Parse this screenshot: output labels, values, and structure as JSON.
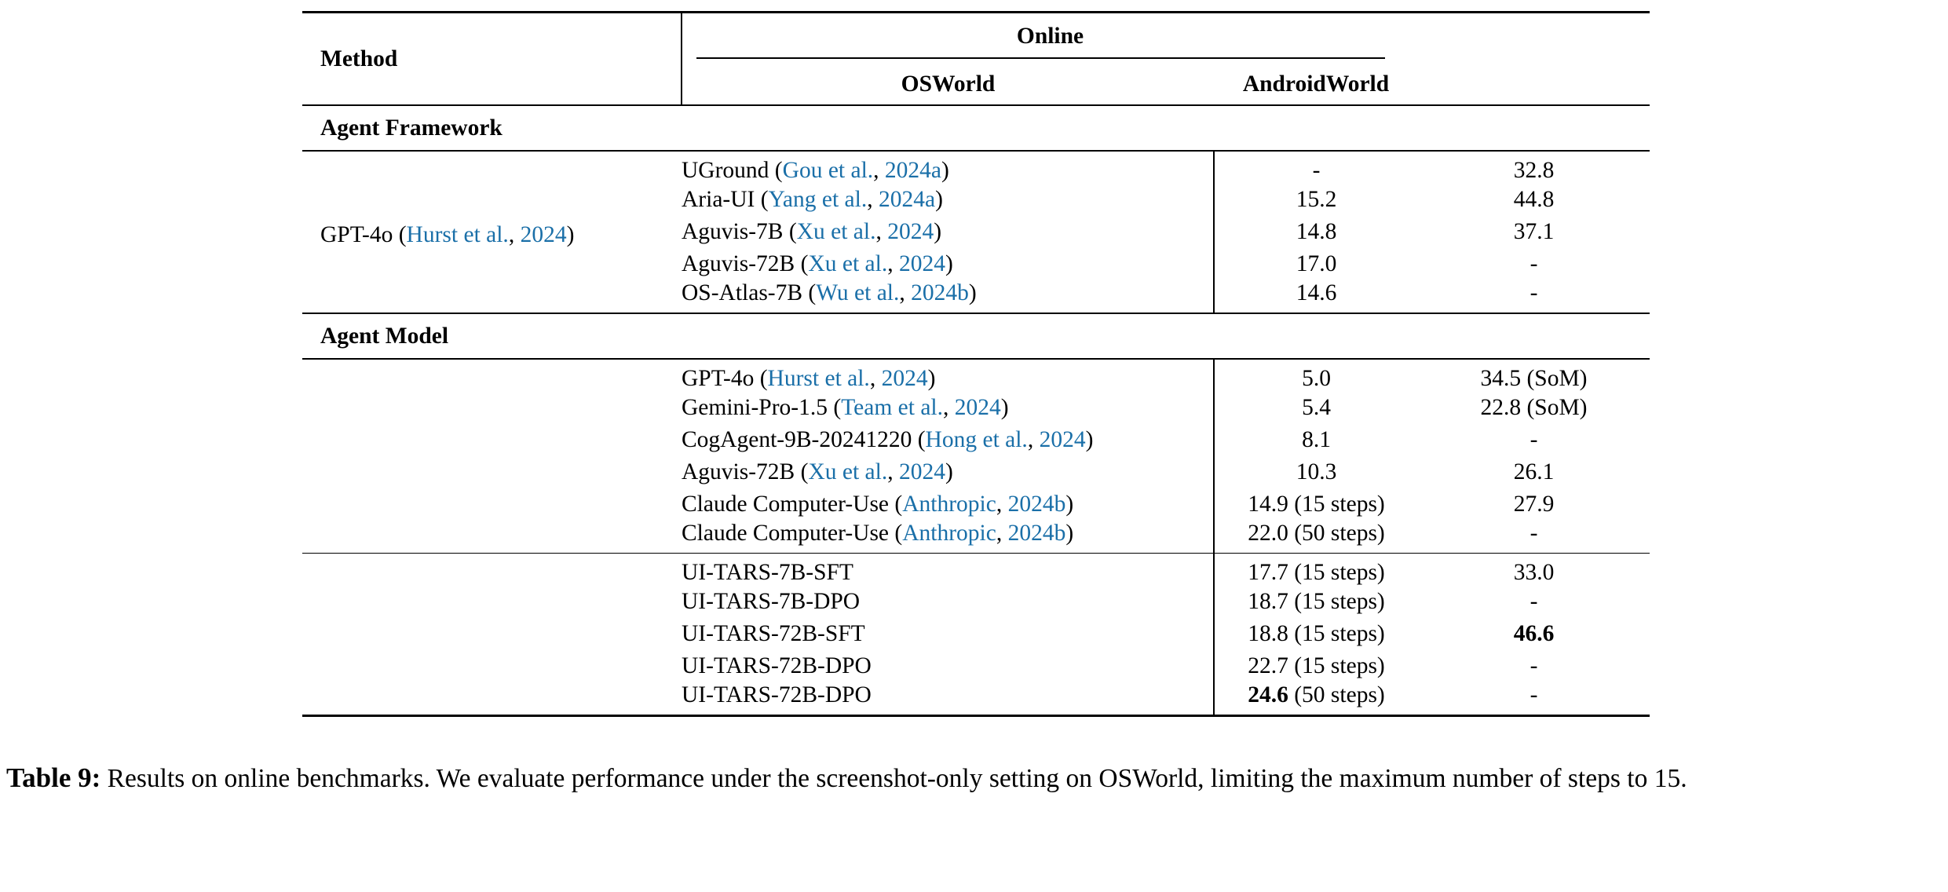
{
  "colors": {
    "citation_blue": "#1a6fa8",
    "text": "#000000",
    "rule": "#000000"
  },
  "table": {
    "header": {
      "method": "Method",
      "group": "Online",
      "columns": [
        "OSWorld",
        "AndroidWorld"
      ]
    },
    "sections": [
      {
        "title": "Agent Framework",
        "groups": [
          {
            "label": {
              "pre": "GPT-4o (",
              "authors": "Hurst et al.",
              "mid": ", ",
              "year": "2024",
              "post": ")"
            },
            "rows": [
              {
                "method": {
                  "pre": "UGround (",
                  "authors": "Gou et al.",
                  "mid": ", ",
                  "year": "2024a",
                  "post": ")"
                },
                "osworld": {
                  "bold": "",
                  "text": "-"
                },
                "android": {
                  "bold": "",
                  "text": "32.8"
                }
              },
              {
                "method": {
                  "pre": "Aria-UI (",
                  "authors": "Yang et al.",
                  "mid": ", ",
                  "year": "2024a",
                  "post": ")"
                },
                "osworld": {
                  "bold": "",
                  "text": "15.2"
                },
                "android": {
                  "bold": "",
                  "text": "44.8"
                }
              },
              {
                "method": {
                  "pre": "Aguvis-7B (",
                  "authors": "Xu et al.",
                  "mid": ", ",
                  "year": "2024",
                  "post": ")"
                },
                "osworld": {
                  "bold": "",
                  "text": "14.8"
                },
                "android": {
                  "bold": "",
                  "text": "37.1"
                }
              },
              {
                "method": {
                  "pre": "Aguvis-72B (",
                  "authors": "Xu et al.",
                  "mid": ", ",
                  "year": "2024",
                  "post": ")"
                },
                "osworld": {
                  "bold": "",
                  "text": "17.0"
                },
                "android": {
                  "bold": "",
                  "text": "-"
                }
              },
              {
                "method": {
                  "pre": "OS-Atlas-7B (",
                  "authors": "Wu et al.",
                  "mid": ", ",
                  "year": "2024b",
                  "post": ")"
                },
                "osworld": {
                  "bold": "",
                  "text": "14.6"
                },
                "android": {
                  "bold": "",
                  "text": "-"
                }
              }
            ]
          }
        ]
      },
      {
        "title": "Agent Model",
        "groups": [
          {
            "label": null,
            "rows": [
              {
                "method": {
                  "pre": "GPT-4o (",
                  "authors": "Hurst et al.",
                  "mid": ", ",
                  "year": "2024",
                  "post": ")"
                },
                "osworld": {
                  "bold": "",
                  "text": "5.0"
                },
                "android": {
                  "bold": "",
                  "text": "34.5 (SoM)"
                }
              },
              {
                "method": {
                  "pre": "Gemini-Pro-1.5 (",
                  "authors": "Team et al.",
                  "mid": ", ",
                  "year": "2024",
                  "post": ")"
                },
                "osworld": {
                  "bold": "",
                  "text": "5.4"
                },
                "android": {
                  "bold": "",
                  "text": "22.8 (SoM)"
                }
              },
              {
                "method": {
                  "pre": "CogAgent-9B-20241220 (",
                  "authors": "Hong et al.",
                  "mid": ", ",
                  "year": "2024",
                  "post": ")"
                },
                "osworld": {
                  "bold": "",
                  "text": "8.1"
                },
                "android": {
                  "bold": "",
                  "text": "-"
                }
              },
              {
                "method": {
                  "pre": "Aguvis-72B (",
                  "authors": "Xu et al.",
                  "mid": ", ",
                  "year": "2024",
                  "post": ")"
                },
                "osworld": {
                  "bold": "",
                  "text": "10.3"
                },
                "android": {
                  "bold": "",
                  "text": "26.1"
                }
              },
              {
                "method": {
                  "pre": "Claude Computer-Use (",
                  "authors": "Anthropic",
                  "mid": ", ",
                  "year": "2024b",
                  "post": ")"
                },
                "osworld": {
                  "bold": "",
                  "text": "14.9 (15 steps)"
                },
                "android": {
                  "bold": "",
                  "text": "27.9"
                }
              },
              {
                "method": {
                  "pre": "Claude Computer-Use (",
                  "authors": "Anthropic",
                  "mid": ", ",
                  "year": "2024b",
                  "post": ")"
                },
                "osworld": {
                  "bold": "",
                  "text": "22.0 (50 steps)"
                },
                "android": {
                  "bold": "",
                  "text": "-"
                }
              }
            ]
          },
          {
            "label": null,
            "rows": [
              {
                "method": {
                  "pre": "UI-TARS-7B-SFT",
                  "authors": "",
                  "mid": "",
                  "year": "",
                  "post": ""
                },
                "osworld": {
                  "bold": "",
                  "text": "17.7 (15 steps)"
                },
                "android": {
                  "bold": "",
                  "text": "33.0"
                }
              },
              {
                "method": {
                  "pre": "UI-TARS-7B-DPO",
                  "authors": "",
                  "mid": "",
                  "year": "",
                  "post": ""
                },
                "osworld": {
                  "bold": "",
                  "text": "18.7 (15 steps)"
                },
                "android": {
                  "bold": "",
                  "text": "-"
                }
              },
              {
                "method": {
                  "pre": "UI-TARS-72B-SFT",
                  "authors": "",
                  "mid": "",
                  "year": "",
                  "post": ""
                },
                "osworld": {
                  "bold": "",
                  "text": "18.8 (15 steps)"
                },
                "android": {
                  "bold": "46.6",
                  "text": ""
                }
              },
              {
                "method": {
                  "pre": "UI-TARS-72B-DPO",
                  "authors": "",
                  "mid": "",
                  "year": "",
                  "post": ""
                },
                "osworld": {
                  "bold": "",
                  "text": "22.7 (15 steps)"
                },
                "android": {
                  "bold": "",
                  "text": "-"
                }
              },
              {
                "method": {
                  "pre": "UI-TARS-72B-DPO",
                  "authors": "",
                  "mid": "",
                  "year": "",
                  "post": ""
                },
                "osworld": {
                  "bold": "24.6",
                  "text": " (50 steps)"
                },
                "android": {
                  "bold": "",
                  "text": "-"
                }
              }
            ]
          }
        ]
      }
    ]
  },
  "caption": {
    "label": "Table 9:",
    "text": " Results on online benchmarks. We evaluate performance under the screenshot-only setting on OSWorld, limiting the maximum number of steps to 15."
  }
}
